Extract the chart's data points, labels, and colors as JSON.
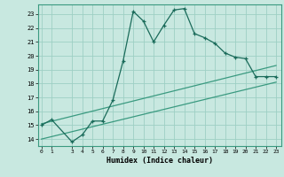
{
  "bg_color": "#c8e8e0",
  "grid_color": "#9ecfc4",
  "line_color": "#1a6b5a",
  "line_color2": "#3a9a80",
  "xlabel": "Humidex (Indice chaleur)",
  "xticks": [
    0,
    1,
    3,
    4,
    5,
    6,
    7,
    8,
    9,
    10,
    11,
    12,
    13,
    14,
    15,
    16,
    17,
    18,
    19,
    20,
    21,
    22,
    23
  ],
  "yticks": [
    14,
    15,
    16,
    17,
    18,
    19,
    20,
    21,
    22,
    23
  ],
  "xlim": [
    -0.3,
    23.5
  ],
  "ylim": [
    13.5,
    23.7
  ],
  "curve_x": [
    0,
    1,
    3,
    4,
    5,
    6,
    7,
    8,
    9,
    10,
    11,
    12,
    13,
    14,
    15,
    16,
    17,
    18,
    19,
    20,
    21,
    22,
    23
  ],
  "curve_y": [
    15.0,
    15.4,
    13.8,
    14.3,
    15.3,
    15.3,
    16.8,
    19.6,
    23.2,
    22.5,
    21.0,
    22.2,
    23.3,
    23.4,
    21.6,
    21.3,
    20.9,
    20.2,
    19.9,
    19.8,
    18.5,
    18.5,
    18.5
  ],
  "line1_x": [
    0,
    23
  ],
  "line1_y": [
    15.1,
    19.3
  ],
  "line2_x": [
    0,
    23
  ],
  "line2_y": [
    14.0,
    18.1
  ],
  "marker_x": [
    0,
    1,
    3,
    4,
    5,
    6,
    7,
    8,
    9,
    10,
    11,
    12,
    13,
    14,
    15,
    16,
    17,
    18,
    19,
    20,
    21,
    22,
    23
  ],
  "marker_y": [
    15.0,
    15.4,
    13.8,
    14.3,
    15.3,
    15.3,
    16.8,
    19.6,
    23.2,
    22.5,
    21.0,
    22.2,
    23.3,
    23.4,
    21.6,
    21.3,
    20.9,
    20.2,
    19.9,
    19.8,
    18.5,
    18.5,
    18.5
  ]
}
